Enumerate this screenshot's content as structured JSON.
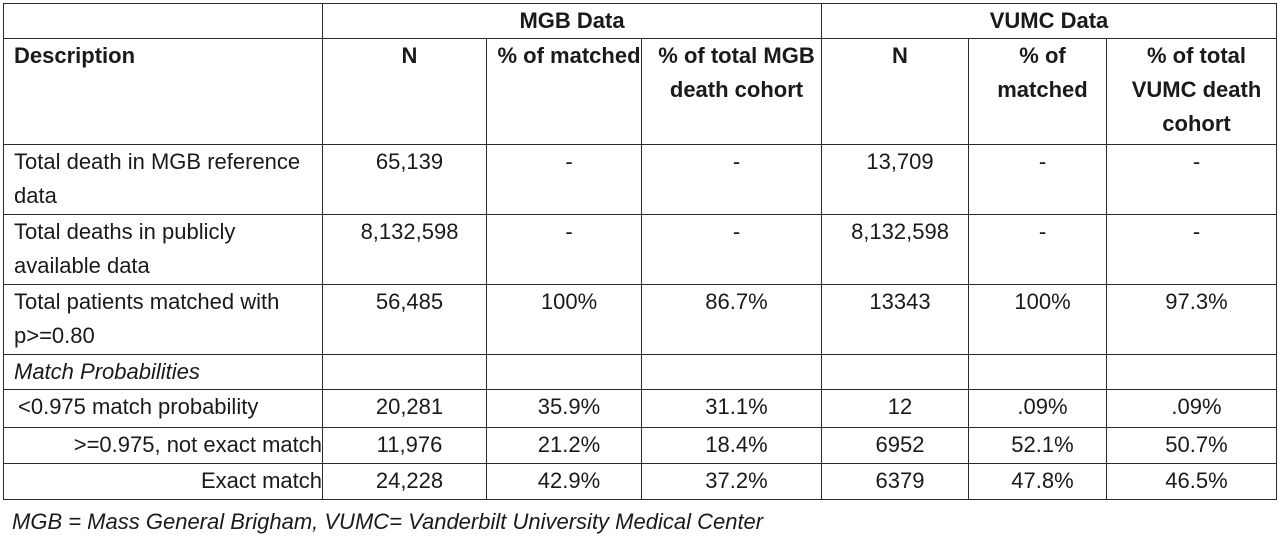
{
  "groups": {
    "mgb": "MGB Data",
    "vumc": "VUMC Data"
  },
  "headers": {
    "description": "Description",
    "n": "N",
    "pct_matched": "% of matched",
    "pct_total_mgb": "% of total MGB death cohort",
    "pct_total_vumc": "% of total VUMC death cohort"
  },
  "rows": [
    {
      "desc": "Total death in MGB reference data",
      "mgb_n": "65,139",
      "mgb_pct_matched": "-",
      "mgb_pct_total": "-",
      "vumc_n": "13,709",
      "vumc_pct_matched": "-",
      "vumc_pct_total": "-"
    },
    {
      "desc": "Total deaths in publicly available data",
      "mgb_n": "8,132,598",
      "mgb_pct_matched": "-",
      "mgb_pct_total": "-",
      "vumc_n": "8,132,598",
      "vumc_pct_matched": "-",
      "vumc_pct_total": "-"
    },
    {
      "desc": "Total patients matched with p>=0.80",
      "mgb_n": "56,485",
      "mgb_pct_matched": "100%",
      "mgb_pct_total": "86.7%",
      "vumc_n": "13343",
      "vumc_pct_matched": "100%",
      "vumc_pct_total": "97.3%"
    },
    {
      "desc": "Match Probabilities"
    },
    {
      "desc": "<0.975 match probability",
      "mgb_n": "20,281",
      "mgb_pct_matched": "35.9%",
      "mgb_pct_total": "31.1%",
      "vumc_n": "12",
      "vumc_pct_matched": ".09%",
      "vumc_pct_total": ".09%"
    },
    {
      "desc": ">=0.975, not exact match",
      "mgb_n": "11,976",
      "mgb_pct_matched": "21.2%",
      "mgb_pct_total": "18.4%",
      "vumc_n": "6952",
      "vumc_pct_matched": "52.1%",
      "vumc_pct_total": "50.7%"
    },
    {
      "desc": "Exact match",
      "mgb_n": "24,228",
      "mgb_pct_matched": "42.9%",
      "mgb_pct_total": "37.2%",
      "vumc_n": "6379",
      "vumc_pct_matched": "47.8%",
      "vumc_pct_total": "46.5%"
    }
  ],
  "footnote": "MGB = Mass General Brigham, VUMC= Vanderbilt University Medical Center"
}
